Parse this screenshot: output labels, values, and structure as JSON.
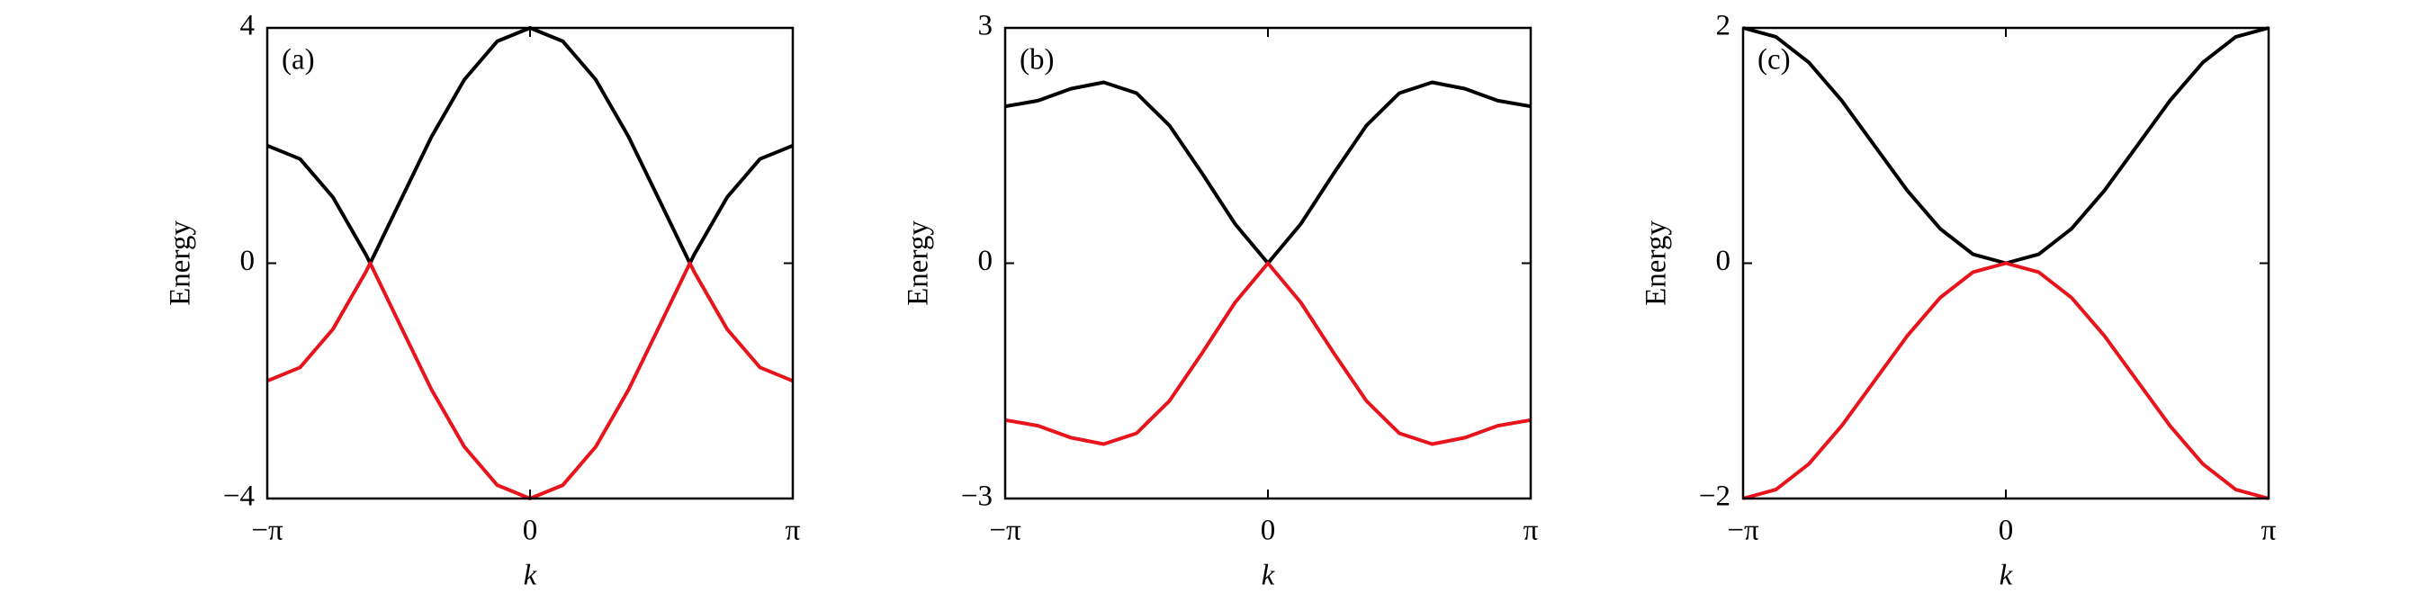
{
  "chart_data": [
    {
      "type": "line",
      "panel_label": "(a)",
      "xlabel": "k",
      "ylabel": "Energy",
      "x": [
        -3.1416,
        -2.7489,
        -2.3562,
        -1.9635,
        -1.9106,
        -1.5708,
        -1.1781,
        -0.7854,
        -0.3927,
        0,
        0.3927,
        0.7854,
        1.1781,
        1.5708,
        1.9106,
        1.9635,
        2.3562,
        2.7489,
        3.1416
      ],
      "series": [
        {
          "color": "#000000",
          "values": [
            2,
            1.772,
            1.121,
            0.149,
            0,
            1,
            2.149,
            3.121,
            3.772,
            4,
            3.772,
            3.121,
            2.149,
            1,
            0,
            0.149,
            1.121,
            1.772,
            2
          ]
        },
        {
          "color": "#e8141c",
          "values": [
            -2,
            -1.772,
            -1.121,
            -0.149,
            0,
            -1,
            -2.149,
            -3.121,
            -3.772,
            -4,
            -3.772,
            -3.121,
            -2.149,
            -1,
            0,
            -0.149,
            -1.121,
            -1.772,
            -2
          ]
        }
      ],
      "xlim": [
        -3.1416,
        3.1416
      ],
      "ylim": [
        -4,
        4
      ],
      "xticks": [
        {
          "value": -3.1416,
          "label": "−π"
        },
        0,
        {
          "value": 3.1416,
          "label": "π"
        }
      ],
      "yticks": [
        {
          "value": -4,
          "label": "−4"
        },
        0,
        4
      ]
    },
    {
      "type": "line",
      "panel_label": "(b)",
      "xlabel": "k",
      "ylabel": "Energy",
      "x": [
        -3.1416,
        -2.7489,
        -2.3562,
        -1.9635,
        -1.5708,
        -1.1781,
        -0.7854,
        -0.3927,
        0,
        0.3927,
        0.7854,
        1.1781,
        1.5708,
        1.9635,
        2.3562,
        2.7489,
        3.1416
      ],
      "series": [
        {
          "color": "#000000",
          "values": [
            2,
            2.072,
            2.225,
            2.306,
            2.168,
            1.756,
            1.143,
            0.5,
            0,
            0.5,
            1.143,
            1.756,
            2.168,
            2.306,
            2.225,
            2.072,
            2
          ]
        },
        {
          "color": "#e8141c",
          "values": [
            -2,
            -2.072,
            -2.225,
            -2.306,
            -2.168,
            -1.756,
            -1.143,
            -0.5,
            0,
            -0.5,
            -1.143,
            -1.756,
            -2.168,
            -2.306,
            -2.225,
            -2.072,
            -2
          ]
        }
      ],
      "xlim": [
        -3.1416,
        3.1416
      ],
      "ylim": [
        -3,
        3
      ],
      "xticks": [
        {
          "value": -3.1416,
          "label": "−π"
        },
        0,
        {
          "value": 3.1416,
          "label": "π"
        }
      ],
      "yticks": [
        {
          "value": -3,
          "label": "−3"
        },
        0,
        3
      ]
    },
    {
      "type": "line",
      "panel_label": "(c)",
      "xlabel": "k",
      "ylabel": "Energy",
      "x": [
        -3.1416,
        -2.7489,
        -2.3562,
        -1.9635,
        -1.5708,
        -1.1781,
        -0.7854,
        -0.3927,
        0,
        0.3927,
        0.7854,
        1.1781,
        1.5708,
        1.9635,
        2.3562,
        2.7489,
        3.1416
      ],
      "series": [
        {
          "color": "#000000",
          "values": [
            2,
            1.924,
            1.707,
            1.383,
            1,
            0.617,
            0.293,
            0.076,
            0,
            0.076,
            0.293,
            0.617,
            1,
            1.383,
            1.707,
            1.924,
            2
          ]
        },
        {
          "color": "#e8141c",
          "values": [
            -2,
            -1.924,
            -1.707,
            -1.383,
            -1,
            -0.617,
            -0.293,
            -0.076,
            0,
            -0.076,
            -0.293,
            -0.617,
            -1,
            -1.383,
            -1.707,
            -1.924,
            -2
          ]
        }
      ],
      "xlim": [
        -3.1416,
        3.1416
      ],
      "ylim": [
        -2,
        2
      ],
      "xticks": [
        {
          "value": -3.1416,
          "label": "−π"
        },
        0,
        {
          "value": 3.1416,
          "label": "π"
        }
      ],
      "yticks": [
        {
          "value": -2,
          "label": "−2"
        },
        0,
        2
      ]
    }
  ]
}
